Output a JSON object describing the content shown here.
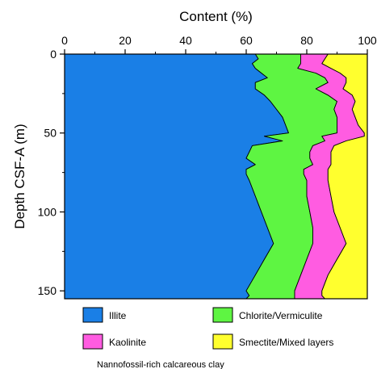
{
  "chart_data": {
    "type": "area",
    "stacked": true,
    "orientation": "depth-vertical",
    "title": "",
    "xlabel": "Content (%)",
    "ylabel": "Depth CSF-A (m)",
    "xlim": [
      0,
      100
    ],
    "ylim": [
      0,
      155
    ],
    "x_axis_position": "top",
    "y_reversed": true,
    "xticks": [
      0,
      20,
      40,
      60,
      80,
      100
    ],
    "yticks": [
      0,
      50,
      100,
      150
    ],
    "grid": false,
    "legend_position": "bottom",
    "depth": [
      0,
      3,
      6,
      9,
      12,
      15,
      18,
      22,
      26,
      30,
      35,
      40,
      45,
      50,
      52,
      55,
      58,
      62,
      66,
      70,
      73,
      76,
      80,
      90,
      100,
      110,
      120,
      130,
      140,
      150,
      153,
      155
    ],
    "series": [
      {
        "name": "Illite",
        "color": "#1a7fe6",
        "values": [
          63,
          64,
          62,
          63,
          65,
          67,
          63,
          63,
          66,
          68,
          70,
          72,
          73,
          74,
          66,
          72,
          62,
          61,
          60,
          63,
          60,
          60,
          61,
          63,
          65,
          67,
          69,
          66,
          63,
          60,
          61,
          60
        ]
      },
      {
        "name": "Chlorite/Vermiculite",
        "color": "#5ef542",
        "values": [
          15,
          14,
          16,
          14,
          18,
          19,
          24,
          20,
          21,
          22,
          19,
          18,
          17,
          16,
          19,
          14,
          20,
          20,
          21,
          19,
          19,
          19,
          19,
          17,
          16,
          15,
          13,
          14,
          15,
          16,
          15,
          16
        ]
      },
      {
        "name": "Kaolinite",
        "color": "#ff5ce1",
        "values": [
          9,
          8,
          7,
          11,
          8,
          7,
          6,
          9,
          8,
          6,
          6,
          6,
          7,
          9,
          14,
          7,
          7,
          7,
          7,
          6,
          8,
          8,
          7,
          8,
          8,
          9,
          11,
          10,
          9,
          9,
          9,
          10
        ]
      },
      {
        "name": "Smectite/Mixed layers",
        "color": "#ffff2e",
        "values": [
          13,
          14,
          15,
          12,
          9,
          7,
          7,
          8,
          5,
          4,
          5,
          4,
          3,
          1,
          1,
          7,
          11,
          12,
          12,
          12,
          13,
          13,
          13,
          12,
          11,
          9,
          7,
          10,
          13,
          15,
          15,
          14
        ]
      }
    ]
  },
  "caption": "Nannofossil-rich calcareous clay"
}
